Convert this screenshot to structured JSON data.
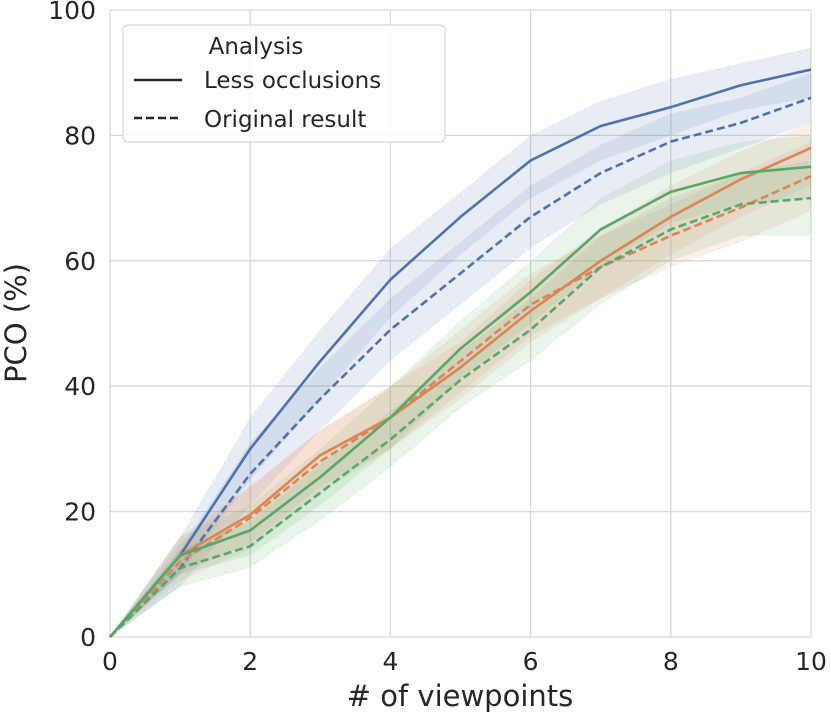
{
  "chart_data": {
    "type": "line",
    "xlabel": "# of viewpoints",
    "ylabel": "PCO (%)",
    "xlim": [
      0,
      10
    ],
    "ylim": [
      0,
      100
    ],
    "xticks": [
      "0",
      "2",
      "4",
      "6",
      "8",
      "10"
    ],
    "yticks": [
      "0",
      "20",
      "40",
      "60",
      "80",
      "100"
    ],
    "grid": true,
    "x": [
      0,
      1,
      2,
      3,
      4,
      5,
      6,
      7,
      8,
      9,
      10
    ],
    "legend": {
      "placement": "top-left",
      "title": "Analysis",
      "entries": [
        {
          "label": "Less occlusions",
          "style": "solid"
        },
        {
          "label": "Original result",
          "style": "dashed"
        }
      ]
    },
    "series": [
      {
        "color": "#4c72b0",
        "style": "solid",
        "values": [
          0,
          13,
          30,
          44,
          57,
          67,
          76,
          81.5,
          84.5,
          88,
          90.5
        ],
        "band_low": [
          0,
          10,
          25,
          38,
          51,
          61,
          70,
          76,
          80,
          84,
          86
        ],
        "band_high": [
          0,
          16,
          35,
          49,
          62,
          71,
          80,
          85.5,
          89,
          91.5,
          94
        ]
      },
      {
        "color": "#4c72b0",
        "style": "dashed",
        "values": [
          0,
          11,
          26,
          38,
          49,
          58,
          67,
          74,
          79,
          82,
          86
        ],
        "band_low": [
          0,
          8,
          21,
          33,
          44,
          53,
          62,
          69,
          74,
          78,
          82
        ],
        "band_high": [
          0,
          14,
          31,
          43,
          54,
          63,
          72,
          78.5,
          83.5,
          86,
          90
        ]
      },
      {
        "color": "#dd8452",
        "style": "solid",
        "values": [
          0,
          13,
          19.5,
          29,
          35,
          43,
          52,
          60,
          67,
          73,
          78
        ],
        "band_low": [
          0,
          10,
          15,
          24,
          30,
          38,
          47,
          54,
          61,
          67,
          72
        ],
        "band_high": [
          0,
          16,
          24,
          33,
          40,
          47,
          57,
          65,
          72,
          77.5,
          82
        ]
      },
      {
        "color": "#dd8452",
        "style": "dashed",
        "values": [
          0,
          12,
          19,
          28,
          35,
          44,
          53,
          59,
          64,
          68.5,
          73.5
        ],
        "band_low": [
          0,
          9,
          14,
          23,
          30,
          39,
          48,
          54,
          59,
          63,
          68
        ],
        "band_high": [
          0,
          15,
          24,
          33,
          40,
          49,
          58,
          64,
          69,
          74,
          79
        ]
      },
      {
        "color": "#55a868",
        "style": "solid",
        "values": [
          0,
          13,
          17,
          25.5,
          35,
          46,
          55,
          65,
          71,
          74,
          75
        ],
        "band_low": [
          0,
          10,
          13,
          21,
          30,
          41,
          50,
          59,
          66,
          69,
          70
        ],
        "band_high": [
          0,
          16,
          21,
          30,
          40,
          50.5,
          60,
          70,
          76,
          79,
          80
        ]
      },
      {
        "color": "#55a868",
        "style": "dashed",
        "values": [
          0,
          11,
          14.5,
          23,
          31.5,
          41,
          49,
          59,
          65,
          69,
          70
        ],
        "band_low": [
          0,
          8,
          11,
          18.5,
          27,
          36.5,
          44,
          53,
          60,
          64,
          64
        ],
        "band_high": [
          0,
          14,
          18.5,
          27.5,
          36,
          45.5,
          54,
          64,
          70,
          74,
          76
        ]
      }
    ]
  }
}
